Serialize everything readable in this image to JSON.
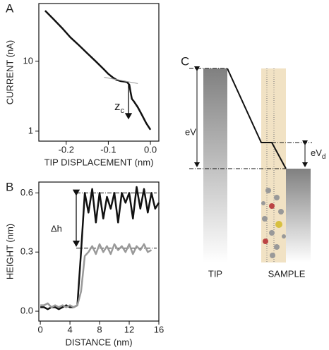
{
  "chart_data": [
    {
      "type": "line",
      "panel": "A",
      "xlabel": "TIP DISPLACEMENT (nm)",
      "ylabel": "CURRENT (nA)",
      "log_y": true,
      "xlim": [
        -0.265,
        0.02
      ],
      "ylim": [
        0.72,
        67
      ],
      "xticks": [
        -0.2,
        -0.1,
        {
          "value": 0,
          "label": "0.0"
        }
      ],
      "yticks": [
        1,
        10
      ],
      "series": [
        {
          "color": "#111111",
          "width": 2.5,
          "x": [
            -0.25,
            -0.23,
            -0.21,
            -0.19,
            -0.17,
            -0.15,
            -0.13,
            -0.11,
            -0.1,
            -0.09,
            -0.08,
            -0.07,
            -0.06,
            -0.055,
            -0.05,
            -0.047,
            -0.044,
            -0.04,
            -0.03,
            -0.02,
            -0.01,
            0.0
          ],
          "values": [
            53,
            40,
            30,
            22,
            17,
            13,
            10,
            7.6,
            6.6,
            5.9,
            5.4,
            5.2,
            5.1,
            5.0,
            4.6,
            3.6,
            2.9,
            2.7,
            2.2,
            1.7,
            1.3,
            1.05
          ]
        },
        {
          "color": "#999999",
          "width": 1,
          "x": [
            -0.11,
            -0.03
          ],
          "values": [
            5.9,
            4.8
          ]
        }
      ],
      "annotation": {
        "text": "z",
        "sub": "c"
      }
    },
    {
      "type": "line",
      "panel": "B",
      "xlabel": "DISTANCE (nm)",
      "ylabel": "HEIGHT (nm)",
      "log_y": false,
      "xlim": [
        -0.2,
        16
      ],
      "ylim": [
        -0.05,
        0.655
      ],
      "xticks": [
        0,
        4,
        8,
        12,
        16
      ],
      "yticks": [
        {
          "value": 0,
          "label": "0.0"
        },
        0.3,
        0.6
      ],
      "reference_lines": [
        0.6,
        0.32
      ],
      "series": [
        {
          "color": "#111111",
          "width": 2.5,
          "x": [
            0,
            0.5,
            1,
            1.5,
            2,
            2.5,
            3,
            3.5,
            4,
            4.5,
            5,
            5.5,
            6,
            6.5,
            7,
            7.5,
            8,
            8.5,
            9,
            9.5,
            10,
            10.5,
            11,
            11.5,
            12,
            12.5,
            13,
            13.5,
            14,
            14.5,
            15,
            15.5,
            16
          ],
          "values": [
            0.02,
            0.02,
            0.01,
            0.02,
            0.02,
            0.01,
            0.02,
            0.03,
            0.02,
            0.02,
            0.03,
            0.3,
            0.6,
            0.5,
            0.62,
            0.45,
            0.6,
            0.47,
            0.58,
            0.52,
            0.6,
            0.45,
            0.6,
            0.55,
            0.6,
            0.47,
            0.63,
            0.52,
            0.62,
            0.5,
            0.6,
            0.52,
            0.55
          ]
        },
        {
          "color": "#999999",
          "width": 2.5,
          "x": [
            0,
            0.5,
            1,
            1.5,
            2,
            2.5,
            3,
            3.5,
            4,
            4.5,
            5,
            5.5,
            6,
            6.5,
            7,
            7.5,
            8,
            8.5,
            9,
            9.5,
            10,
            10.5,
            11,
            11.5,
            12,
            12.5,
            13,
            13.5,
            14,
            14.5,
            15
          ],
          "values": [
            0.03,
            0.03,
            0.04,
            0.02,
            0.03,
            0.02,
            0.03,
            0.02,
            0.03,
            0.02,
            0.03,
            0.1,
            0.28,
            0.3,
            0.33,
            0.29,
            0.34,
            0.3,
            0.33,
            0.29,
            0.34,
            0.31,
            0.33,
            0.3,
            0.34,
            0.29,
            0.33,
            0.31,
            0.34,
            0.3,
            0.31
          ]
        }
      ],
      "annotation": {
        "text": "Δh"
      }
    }
  ],
  "panel_c": {
    "panel": "C",
    "ev": "eV",
    "evd": {
      "text": "eV",
      "sub": "d"
    },
    "tip": "TIP",
    "sample": "SAMPLE"
  }
}
